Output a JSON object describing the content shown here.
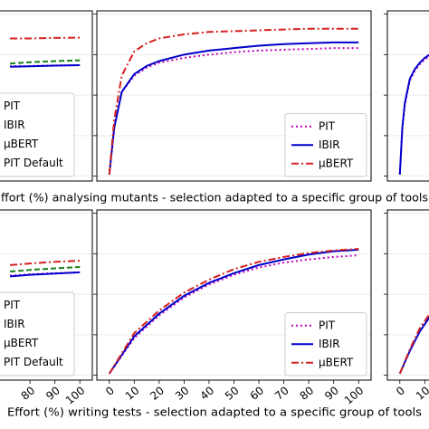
{
  "chart_data": [
    {
      "type": "line",
      "xlim": [
        -5,
        105
      ],
      "ylim": [
        -3,
        102
      ],
      "yticks": [
        0,
        25,
        50,
        75,
        100
      ],
      "grid": true,
      "legend": "lower left",
      "x": [
        72,
        80,
        90,
        100
      ],
      "series": [
        {
          "name": "PIT",
          "color": "#bf00bf",
          "style": "dotted",
          "values": [
            67.8,
            68,
            68.3,
            68.5
          ]
        },
        {
          "name": "IBIR",
          "color": "#0000cc",
          "style": "solid",
          "values": [
            67.5,
            67.8,
            68.2,
            68.5
          ]
        },
        {
          "name": "µBERT",
          "color": "#d62020",
          "style": "dashdot",
          "values": [
            85,
            85,
            85.3,
            85.5
          ]
        },
        {
          "name": "PIT Default",
          "color": "#1a7f1a",
          "style": "dashed",
          "values": [
            69.5,
            70.3,
            71,
            71.5
          ]
        }
      ]
    },
    {
      "type": "line",
      "xlim": [
        -5,
        105
      ],
      "ylim": [
        -3,
        102
      ],
      "yticks": [
        0,
        25,
        50,
        75,
        100
      ],
      "grid": true,
      "legend": "lower right",
      "xlabel": "ffort (%) analysing mutants - selection adapted to a specific group of tools",
      "x": [
        0,
        2,
        5,
        10,
        15,
        20,
        30,
        40,
        50,
        60,
        70,
        80,
        90,
        100
      ],
      "series": [
        {
          "name": "PIT",
          "color": "#bf00bf",
          "style": "dotted",
          "values": [
            1,
            30,
            52,
            62,
            67,
            70,
            73,
            75,
            76.5,
            77.5,
            78,
            78.5,
            79,
            79
          ]
        },
        {
          "name": "IBIR",
          "color": "#0000cc",
          "style": "solid",
          "values": [
            1,
            30,
            52,
            63,
            68,
            71,
            75,
            77.5,
            79,
            80.5,
            81.5,
            82,
            82.5,
            82.5
          ]
        },
        {
          "name": "µBERT",
          "color": "#d62020",
          "style": "dashdot",
          "values": [
            1,
            35,
            62,
            77,
            82,
            85,
            87.5,
            89,
            89.5,
            90,
            90.5,
            91,
            91,
            91
          ]
        }
      ]
    },
    {
      "type": "line",
      "xlim": [
        -5,
        105
      ],
      "ylim": [
        -3,
        102
      ],
      "yticks": [
        0,
        25,
        50,
        75,
        100
      ],
      "grid": true,
      "x": [
        0,
        1,
        2,
        4,
        6,
        8,
        10,
        12
      ],
      "series": [
        {
          "color": "#bf00bf",
          "style": "dotted",
          "values": [
            1,
            29,
            44,
            59,
            65,
            69,
            72,
            74
          ]
        },
        {
          "color": "#0000cc",
          "style": "solid",
          "values": [
            1,
            30,
            45,
            60,
            66,
            70,
            73,
            75
          ]
        }
      ]
    },
    {
      "type": "line",
      "xlim": [
        -5,
        105
      ],
      "ylim": [
        -3,
        102
      ],
      "yticks": [
        0,
        25,
        50,
        75,
        100
      ],
      "grid": true,
      "legend": "lower left",
      "x": [
        72,
        80,
        90,
        100
      ],
      "xticks": [
        80,
        90,
        100
      ],
      "series": [
        {
          "name": "PIT",
          "color": "#bf00bf",
          "style": "dotted",
          "values": [
            61.5,
            62.3,
            63,
            63.5
          ]
        },
        {
          "name": "IBIR",
          "color": "#0000cc",
          "style": "solid",
          "values": [
            61,
            62,
            62.8,
            63.5
          ]
        },
        {
          "name": "µBERT",
          "color": "#d62020",
          "style": "dashdot",
          "values": [
            68,
            69,
            70,
            70.7
          ]
        },
        {
          "name": "PIT Default",
          "color": "#1a7f1a",
          "style": "dashed",
          "values": [
            64,
            65,
            66,
            66.8
          ]
        }
      ]
    },
    {
      "type": "line",
      "xlim": [
        -5,
        105
      ],
      "ylim": [
        -3,
        102
      ],
      "yticks": [
        0,
        25,
        50,
        75,
        100
      ],
      "grid": true,
      "legend": "lower right",
      "xlabel": "Effort (%) writing tests - selection adapted to a specific group of tools",
      "x": [
        0,
        10,
        20,
        30,
        40,
        50,
        60,
        70,
        80,
        90,
        100
      ],
      "xticks": [
        0,
        10,
        20,
        30,
        40,
        50,
        60,
        70,
        80,
        90,
        100
      ],
      "series": [
        {
          "name": "PIT",
          "color": "#bf00bf",
          "style": "dotted",
          "values": [
            1,
            23,
            37,
            48,
            56,
            62,
            66.5,
            69.5,
            71.5,
            73,
            74
          ]
        },
        {
          "name": "IBIR",
          "color": "#0000cc",
          "style": "solid",
          "values": [
            1,
            24,
            38,
            49,
            57,
            63,
            68,
            71.5,
            74.5,
            76.5,
            77.5
          ]
        },
        {
          "name": "µBERT",
          "color": "#d62020",
          "style": "dashdot",
          "values": [
            1,
            26,
            40,
            51,
            59,
            65.5,
            70,
            73,
            75.5,
            77,
            78
          ]
        }
      ]
    },
    {
      "type": "line",
      "xlim": [
        -5,
        105
      ],
      "ylim": [
        -3,
        102
      ],
      "yticks": [
        0,
        25,
        50,
        75,
        100
      ],
      "grid": true,
      "x": [
        0,
        4,
        8,
        12
      ],
      "xticks": [
        0,
        10
      ],
      "series": [
        {
          "color": "#0000cc",
          "style": "solid",
          "values": [
            1,
            15,
            27,
            36
          ]
        },
        {
          "color": "#d62020",
          "style": "dashdot",
          "values": [
            1,
            16,
            29,
            38
          ]
        }
      ]
    }
  ]
}
